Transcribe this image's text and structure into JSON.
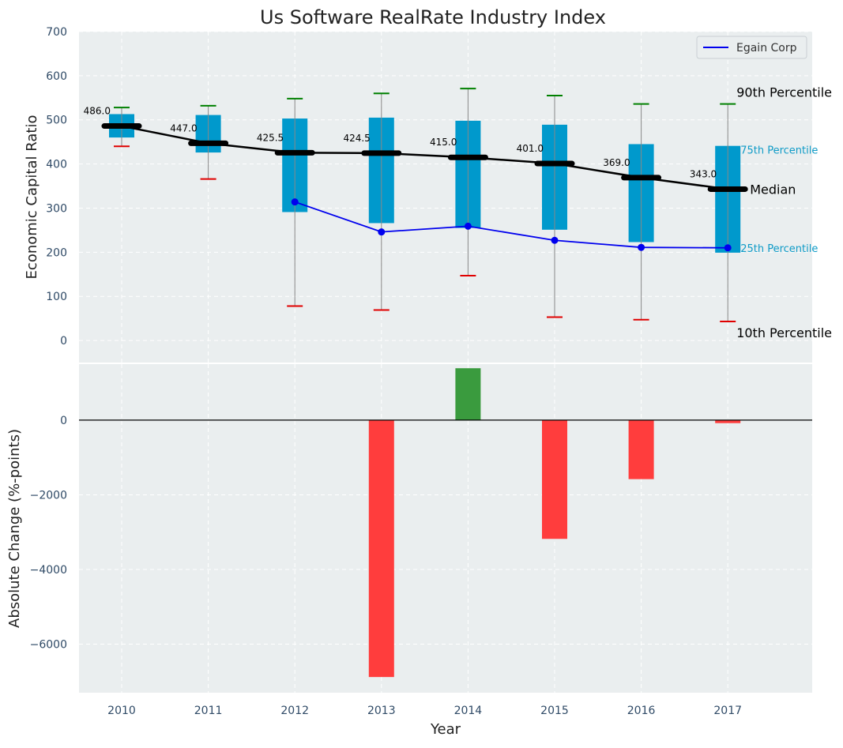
{
  "colors": {
    "panel_bg": "#eaeeef",
    "box": "#0099cc",
    "median": "#000000",
    "whisker": "#888888",
    "p90_cap": "#008000",
    "p10_cap": "#e00000",
    "company": "#0000ee",
    "pos_bar": "#3a9b3e",
    "neg_bar": "#ff3d3d",
    "pct_small": "#0f9bc7"
  },
  "chart_data": [
    {
      "type": "box",
      "title": "Us Software RealRate Industry Index",
      "ylabel": "Economic Capital Ratio",
      "ylim": [
        -50,
        700
      ],
      "yticks": [
        0,
        100,
        200,
        300,
        400,
        500,
        600,
        700
      ],
      "categories": [
        "2010",
        "2011",
        "2012",
        "2013",
        "2014",
        "2015",
        "2016",
        "2017"
      ],
      "p10": [
        440,
        366,
        78,
        69,
        147,
        53,
        47,
        43
      ],
      "p25": [
        460,
        426,
        291,
        266,
        255,
        251,
        223,
        199
      ],
      "median": [
        486.0,
        447.0,
        425.5,
        424.5,
        415.0,
        401.0,
        369.0,
        343.0
      ],
      "median_labels": [
        "486.0",
        "447.0",
        "425.5",
        "424.5",
        "415.0",
        "401.0",
        "369.0",
        "343.0"
      ],
      "p75": [
        513,
        511,
        503,
        505,
        498,
        489,
        445,
        441
      ],
      "p90": [
        528,
        532,
        548,
        560,
        571,
        555,
        536,
        536
      ],
      "series": [
        {
          "name": "Egain Corp",
          "values": [
            null,
            null,
            314,
            246,
            259,
            227,
            211,
            210
          ]
        }
      ],
      "legend": {
        "entries": [
          "Egain Corp"
        ],
        "position": "top-right"
      },
      "annotations": {
        "p90": "90th Percentile",
        "p75": "75th Percentile",
        "median": "Median",
        "p25": "25th Percentile",
        "p10": "10th Percentile"
      },
      "grid": true
    },
    {
      "type": "bar",
      "ylabel": "Absolute Change (%-points)",
      "xlabel": "Year",
      "ylim": [
        -7300,
        1500
      ],
      "yticks": [
        0,
        -2000,
        -4000,
        -6000
      ],
      "ytick_labels": [
        "0",
        "−2000",
        "−4000",
        "−6000"
      ],
      "categories": [
        "2010",
        "2011",
        "2012",
        "2013",
        "2014",
        "2015",
        "2016",
        "2017"
      ],
      "values": [
        null,
        null,
        null,
        -6880,
        1390,
        -3180,
        -1580,
        -80
      ],
      "grid": true
    }
  ]
}
